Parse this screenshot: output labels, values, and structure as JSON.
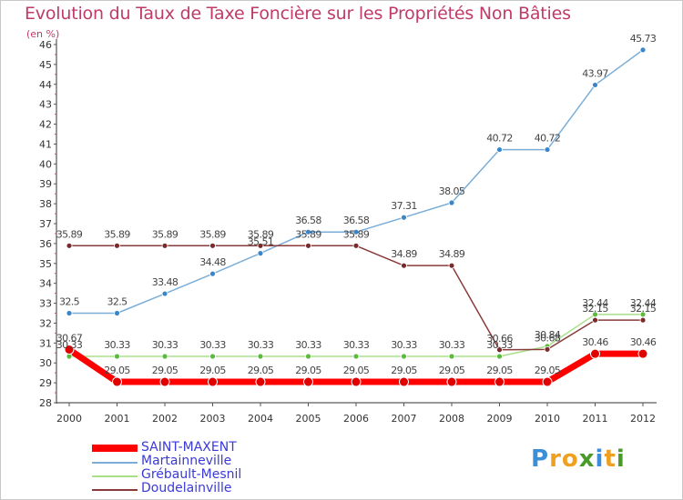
{
  "header": {
    "title": "Evolution du Taux de Taxe Foncière sur les Propriétés Non Bâties",
    "subtitle": "(en %)"
  },
  "logo": {
    "text": "Proxiti",
    "letters": [
      "P",
      "r",
      "o",
      "x",
      "i",
      "t",
      "i"
    ],
    "colors": [
      "#3a8fd8",
      "#f0a020",
      "#f0a020",
      "#4a9a2a",
      "#3a8fd8",
      "#f0a020",
      "#4a9a2a"
    ]
  },
  "chart_data": {
    "type": "line",
    "title": "Evolution du Taux de Taxe Foncière sur les Propriétés Non Bâties",
    "ylabel": "(en %)",
    "xlabel": "",
    "categories": [
      "2000",
      "2001",
      "2002",
      "2003",
      "2004",
      "2005",
      "2006",
      "2007",
      "2008",
      "2009",
      "2010",
      "2011",
      "2012"
    ],
    "ylim": [
      28,
      46
    ],
    "yticks": [
      28,
      29,
      30,
      31,
      32,
      33,
      34,
      35,
      36,
      37,
      38,
      39,
      40,
      41,
      42,
      43,
      44,
      45,
      46
    ],
    "grid": false,
    "legend_position": "bottom-left",
    "series": [
      {
        "name": "SAINT-MAXENT",
        "color": "#ff0000",
        "marker_color": "#e00000",
        "values": [
          30.67,
          29.05,
          29.05,
          29.05,
          29.05,
          29.05,
          29.05,
          29.05,
          29.05,
          29.05,
          29.05,
          30.46,
          30.46
        ],
        "labels": [
          "30.67",
          "29.05",
          "29.05",
          "29.05",
          "29.05",
          "29.05",
          "29.05",
          "29.05",
          "29.05",
          "29.05",
          "29.05",
          "30.46",
          "30.46"
        ]
      },
      {
        "name": "Martainneville",
        "color": "#7aaed8",
        "marker_color": "#3a86c8",
        "values": [
          32.5,
          32.5,
          33.48,
          34.48,
          35.51,
          36.58,
          36.58,
          37.31,
          38.05,
          40.72,
          40.72,
          43.97,
          45.73
        ],
        "labels": [
          "32.5",
          "32.5",
          "33.48",
          "34.48",
          "35.51",
          "36.58",
          "36.58",
          "37.31",
          "38.05",
          "40.72",
          "40.72",
          "43.97",
          "45.73"
        ]
      },
      {
        "name": "Grébault-Mesnil",
        "color": "#a8e08a",
        "marker_color": "#5cbb3c",
        "values": [
          30.33,
          30.33,
          30.33,
          30.33,
          30.33,
          30.33,
          30.33,
          30.33,
          30.33,
          30.33,
          30.84,
          32.44,
          32.44
        ],
        "labels": [
          "30.33",
          "30.33",
          "30.33",
          "30.33",
          "30.33",
          "30.33",
          "30.33",
          "30.33",
          "30.33",
          "30.33",
          "30.84",
          "32.44",
          "32.44"
        ]
      },
      {
        "name": "Doudelainville",
        "color": "#8a3a3a",
        "marker_color": "#7a2a2a",
        "values": [
          35.89,
          35.89,
          35.89,
          35.89,
          35.89,
          35.89,
          35.89,
          34.89,
          34.89,
          30.66,
          30.68,
          32.15,
          32.15
        ],
        "labels": [
          "35.89",
          "35.89",
          "35.89",
          "35.89",
          "35.89",
          "35.89",
          "35.89",
          "34.89",
          "34.89",
          "30.66",
          "30.68",
          "32.15",
          "32.15"
        ]
      }
    ]
  }
}
